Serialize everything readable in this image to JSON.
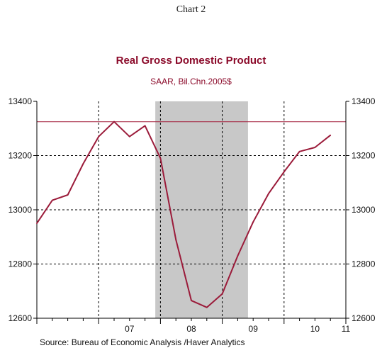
{
  "header": {
    "chart_number": "Chart 2"
  },
  "source": "Source:  Bureau of Economic Analysis /Haver Analytics",
  "colors": {
    "series": "#9b1b3a",
    "title": "#8b0a2a",
    "recession_shade": "#c8c8c8",
    "reference_line": "#a3203c"
  },
  "chart_data": {
    "type": "line",
    "title": "Real Gross Domestic Product",
    "subtitle": "SAAR, Bil.Chn.2005$",
    "x_ticks": [
      "07",
      "08",
      "09",
      "10",
      "11"
    ],
    "x_range": [
      "2006-01",
      "2011-01"
    ],
    "ylim": [
      12600,
      13400
    ],
    "y_ticks": [
      "12600",
      "12800",
      "13000",
      "13200",
      "13400"
    ],
    "grid": true,
    "right_axis": true,
    "recession_shading": {
      "from": "2007-12",
      "to": "2009-06"
    },
    "reference_line": {
      "y": 13325
    },
    "series": [
      {
        "x": [
          "2006-01",
          "2006-04",
          "2006-07",
          "2006-10",
          "2007-01",
          "2007-04",
          "2007-07",
          "2007-10",
          "2008-01",
          "2008-04",
          "2008-07",
          "2008-10",
          "2009-01",
          "2009-04",
          "2009-07",
          "2009-10",
          "2010-01",
          "2010-04",
          "2010-07",
          "2010-10"
        ],
        "values": [
          12950,
          13035,
          13055,
          13170,
          13270,
          13325,
          13270,
          13310,
          13190,
          12890,
          12665,
          12640,
          12690,
          12830,
          12955,
          13060,
          13140,
          13215,
          13230,
          13275
        ]
      }
    ]
  }
}
